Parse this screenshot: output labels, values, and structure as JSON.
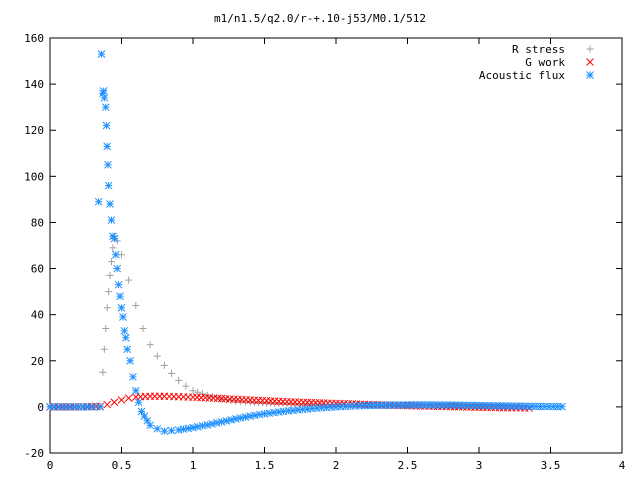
{
  "chart_data": {
    "type": "scatter",
    "title": "m1/n1.5/q2.0/r-+.10-j53/M0.1/512",
    "xlabel": "",
    "ylabel": "",
    "xlim": [
      0,
      4
    ],
    "ylim": [
      -20,
      160
    ],
    "x_ticks": [
      0,
      0.5,
      1,
      1.5,
      2,
      2.5,
      3,
      3.5,
      4
    ],
    "x_tick_labels": [
      "0",
      "0.5",
      "1",
      "1.5",
      "2",
      "2.5",
      "3",
      "3.5",
      "4"
    ],
    "y_ticks": [
      -20,
      0,
      20,
      40,
      60,
      80,
      100,
      120,
      140,
      160
    ],
    "y_tick_labels": [
      "-20",
      "0",
      "20",
      "40",
      "60",
      "80",
      "100",
      "120",
      "140",
      "160"
    ],
    "grid": false,
    "legend_position": "top-right",
    "series": [
      {
        "name": "R stress",
        "marker": "plus",
        "color": "#a0a0a0",
        "points": [
          [
            0.0,
            0
          ],
          [
            0.1,
            0
          ],
          [
            0.2,
            0
          ],
          [
            0.3,
            0
          ],
          [
            0.35,
            0.3
          ],
          [
            0.37,
            15
          ],
          [
            0.38,
            25
          ],
          [
            0.39,
            34
          ],
          [
            0.4,
            43
          ],
          [
            0.41,
            50
          ],
          [
            0.42,
            57
          ],
          [
            0.43,
            63
          ],
          [
            0.44,
            69
          ],
          [
            0.45,
            74
          ],
          [
            0.47,
            72
          ],
          [
            0.5,
            66
          ],
          [
            0.55,
            55
          ],
          [
            0.6,
            44
          ],
          [
            0.65,
            34
          ],
          [
            0.7,
            27
          ],
          [
            0.75,
            22
          ],
          [
            0.8,
            18
          ],
          [
            0.85,
            14.5
          ],
          [
            0.9,
            11.5
          ],
          [
            0.95,
            9
          ],
          [
            1.0,
            7
          ],
          [
            1.1,
            5
          ],
          [
            1.2,
            3.5
          ],
          [
            1.3,
            2.5
          ],
          [
            1.4,
            2
          ],
          [
            1.6,
            1.5
          ],
          [
            1.8,
            1.2
          ],
          [
            2.0,
            1
          ],
          [
            2.5,
            0.6
          ],
          [
            3.0,
            0.3
          ],
          [
            3.3,
            0.2
          ]
        ]
      },
      {
        "name": "G work",
        "marker": "cross",
        "color": "#ff0000",
        "points": [
          [
            0.0,
            0
          ],
          [
            0.2,
            0
          ],
          [
            0.35,
            0.2
          ],
          [
            0.4,
            1
          ],
          [
            0.45,
            2
          ],
          [
            0.5,
            3
          ],
          [
            0.55,
            3.8
          ],
          [
            0.6,
            4.3
          ],
          [
            0.7,
            4.6
          ],
          [
            0.8,
            4.6
          ],
          [
            0.9,
            4.4
          ],
          [
            1.0,
            4.2
          ],
          [
            1.2,
            3.6
          ],
          [
            1.4,
            3
          ],
          [
            1.6,
            2.4
          ],
          [
            1.8,
            1.9
          ],
          [
            2.0,
            1.5
          ],
          [
            2.2,
            1.1
          ],
          [
            2.5,
            0.5
          ],
          [
            2.8,
            0.1
          ],
          [
            3.0,
            -0.2
          ],
          [
            3.2,
            -0.4
          ],
          [
            3.35,
            -0.5
          ]
        ]
      },
      {
        "name": "Acoustic flux",
        "marker": "star",
        "color": "#1e90ff",
        "points": [
          [
            0.0,
            0
          ],
          [
            0.1,
            0
          ],
          [
            0.2,
            0
          ],
          [
            0.3,
            0
          ],
          [
            0.35,
            0
          ],
          [
            0.34,
            89
          ],
          [
            0.36,
            153
          ],
          [
            0.37,
            136
          ],
          [
            0.375,
            137
          ],
          [
            0.38,
            134
          ],
          [
            0.39,
            130
          ],
          [
            0.395,
            122
          ],
          [
            0.4,
            113
          ],
          [
            0.405,
            105
          ],
          [
            0.41,
            96
          ],
          [
            0.42,
            88
          ],
          [
            0.43,
            81
          ],
          [
            0.44,
            74
          ],
          [
            0.45,
            73
          ],
          [
            0.46,
            66
          ],
          [
            0.47,
            60
          ],
          [
            0.48,
            53
          ],
          [
            0.49,
            48
          ],
          [
            0.5,
            43
          ],
          [
            0.51,
            39
          ],
          [
            0.52,
            33
          ],
          [
            0.53,
            30
          ],
          [
            0.54,
            25
          ],
          [
            0.56,
            20
          ],
          [
            0.58,
            13
          ],
          [
            0.6,
            7
          ],
          [
            0.62,
            2
          ],
          [
            0.64,
            -2
          ],
          [
            0.66,
            -4
          ],
          [
            0.68,
            -6
          ],
          [
            0.7,
            -8
          ],
          [
            0.75,
            -9.5
          ],
          [
            0.8,
            -10.5
          ],
          [
            0.85,
            -10.3
          ],
          [
            0.9,
            -10
          ],
          [
            1.0,
            -9
          ],
          [
            1.1,
            -7.8
          ],
          [
            1.2,
            -6.5
          ],
          [
            1.3,
            -5.2
          ],
          [
            1.4,
            -4
          ],
          [
            1.5,
            -3
          ],
          [
            1.6,
            -2.2
          ],
          [
            1.7,
            -1.5
          ],
          [
            1.8,
            -0.9
          ],
          [
            1.9,
            -0.4
          ],
          [
            2.0,
            0
          ],
          [
            2.1,
            0.3
          ],
          [
            2.2,
            0.6
          ],
          [
            2.4,
            0.8
          ],
          [
            2.6,
            0.9
          ],
          [
            2.8,
            0.8
          ],
          [
            3.0,
            0.6
          ],
          [
            3.2,
            0.4
          ],
          [
            3.4,
            0.2
          ],
          [
            3.58,
            0.1
          ]
        ]
      }
    ]
  }
}
